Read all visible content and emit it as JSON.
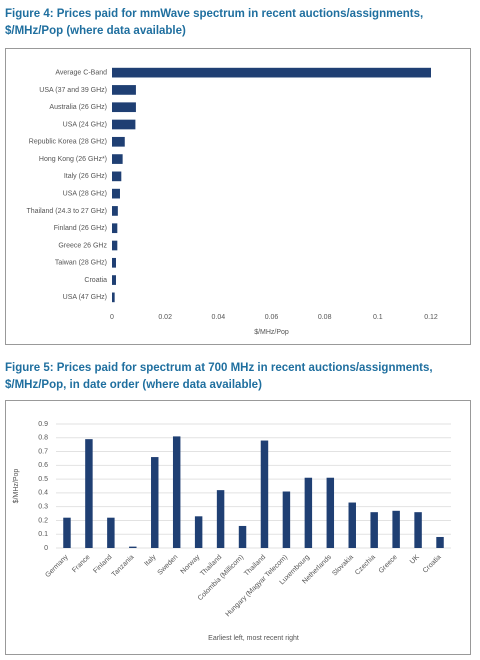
{
  "chart_data": [
    {
      "type": "bar",
      "orientation": "horizontal",
      "title": "Figure 4: Prices paid for mmWave spectrum in recent auctions/assignments, $/MHz/Pop (where data available)",
      "x_label": "$/MHz/Pop",
      "categories": [
        "Average C-Band",
        "USA (37 and 39 GHz)",
        "Australia (26 GHz)",
        "USA (24 GHz)",
        "Republic Korea (28 GHz)",
        "Hong Kong (26 GHz*)",
        "Italy (26 GHz)",
        "USA (28 GHz)",
        "Thailand (24.3 to 27 GHz)",
        "Finland (26 GHz)",
        "Greece 26 GHz",
        "Taiwan (28 GHz)",
        "Croatia",
        "USA (47 GHz)"
      ],
      "values": [
        0.12,
        0.009,
        0.009,
        0.0088,
        0.0048,
        0.004,
        0.0035,
        0.003,
        0.0022,
        0.002,
        0.002,
        0.0015,
        0.0015,
        0.001
      ],
      "color": "#1f3f73",
      "xlim": [
        0,
        0.12
      ],
      "xticks": [
        0,
        0.02,
        0.04,
        0.06,
        0.08,
        0.1,
        0.12
      ],
      "grid": false
    },
    {
      "type": "bar",
      "orientation": "vertical",
      "title": "Figure 5: Prices paid for spectrum at 700 MHz in recent auctions/assignments, $/MHz/Pop, in date order (where data available)",
      "x_label": "Earliest left, most recent right",
      "y_label": "$/MHz/Pop",
      "categories": [
        "Germany",
        "France",
        "Finland",
        "Tanzania",
        "Italy",
        "Sweden",
        "Norway",
        "Thailand",
        "Colombia (Millicom)",
        "Thailand",
        "Hungary (Magyar Telecom)",
        "Luxembourg",
        "Netherlands",
        "Slovakia",
        "Czechia",
        "Greece",
        "UK",
        "Croatia"
      ],
      "values": [
        0.22,
        0.79,
        0.22,
        0.01,
        0.66,
        0.81,
        0.23,
        0.42,
        0.16,
        0.78,
        0.41,
        0.51,
        0.51,
        0.33,
        0.26,
        0.27,
        0.26,
        0.08
      ],
      "color": "#1f3f73",
      "ylim": [
        0,
        0.9
      ],
      "yticks": [
        0,
        0.1,
        0.2,
        0.3,
        0.4,
        0.5,
        0.6,
        0.7,
        0.8,
        0.9
      ],
      "grid": true
    }
  ]
}
